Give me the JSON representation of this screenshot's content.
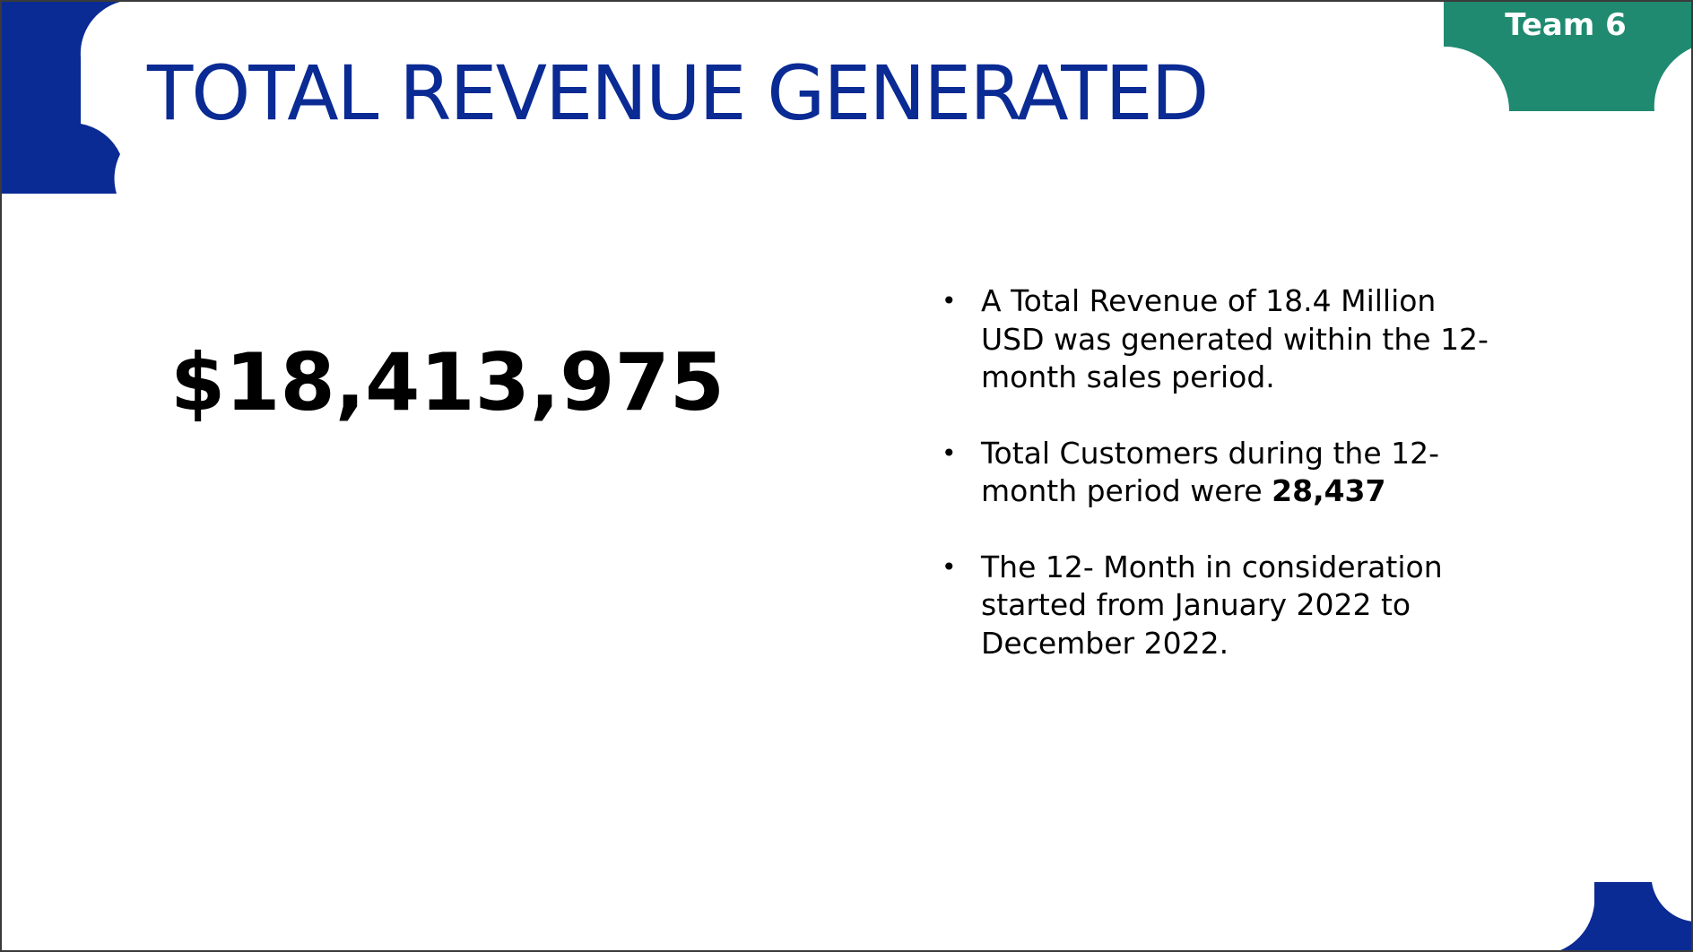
{
  "slide": {
    "team_label": "Team 6",
    "title": "TOTAL REVENUE GENERATED",
    "revenue_figure": "$18,413,975",
    "bullets": [
      {
        "text": "A Total Revenue of 18.4 Million USD was generated within the 12-month sales period."
      },
      {
        "text_before": "Total Customers during the 12-month period were ",
        "highlight": "28,437"
      },
      {
        "text": "The 12- Month in consideration started from January 2022 to December 2022."
      }
    ],
    "bullet_symbol": "•"
  },
  "colors": {
    "title_blue": "#0a2a94",
    "corner_blue": "#0a2a94",
    "team_badge_green": "#1f8a70",
    "text": "#000000",
    "background": "#ffffff"
  }
}
